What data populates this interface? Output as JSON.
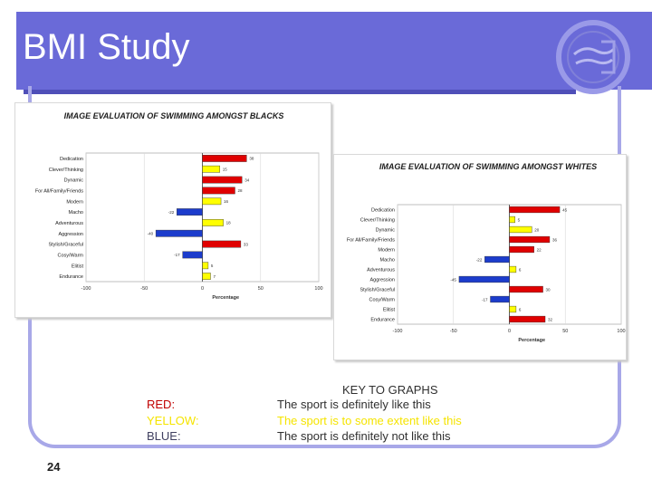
{
  "slide": {
    "title": "BMI Study",
    "page_number": "24"
  },
  "key": {
    "title": "KEY TO GRAPHS",
    "rows": [
      {
        "label": "RED:",
        "text": "The sport is definitely like this",
        "color": "#c00000"
      },
      {
        "label": "YELLOW:",
        "text": "The sport is to some extent like this",
        "color": "#f5e400"
      },
      {
        "label": "BLUE:",
        "text": "The sport is definitely not like this",
        "color": "#404060"
      }
    ]
  },
  "colors": {
    "red": "#e00000",
    "yellow": "#ffff00",
    "blue": "#1c3ccc"
  },
  "chart_data": [
    {
      "type": "bar",
      "orientation": "horizontal",
      "title": "IMAGE EVALUATION OF SWIMMING AMONGST BLACKS",
      "xlabel": "Percentage",
      "xlim": [
        -100,
        100
      ],
      "xticks": [
        "-100",
        "-50",
        "0",
        "50",
        "100"
      ],
      "categories": [
        "Dedication",
        "Clever/Thinking",
        "Dynamic",
        "For All/Family/Friends",
        "Modern",
        "Macho",
        "Adventurous",
        "Aggression",
        "Stylish/Graceful",
        "Cosy/Warm",
        "Elitist",
        "Endurance"
      ],
      "values": [
        38,
        15,
        34,
        28,
        16,
        -22,
        18,
        -40,
        33,
        -17,
        5,
        7
      ],
      "value_labels": [
        "38",
        "15",
        "34",
        "28",
        "16",
        "-22",
        "18",
        "-40",
        "33",
        "-17",
        "5",
        "7"
      ],
      "bar_colors": [
        "red",
        "yellow",
        "red",
        "red",
        "yellow",
        "blue",
        "yellow",
        "blue",
        "red",
        "blue",
        "yellow",
        "yellow"
      ]
    },
    {
      "type": "bar",
      "orientation": "horizontal",
      "title": "IMAGE EVALUATION OF SWIMMING AMONGST WHITES",
      "xlabel": "Percentage",
      "xlim": [
        -100,
        100
      ],
      "xticks": [
        "-100",
        "-50",
        "0",
        "50",
        "100"
      ],
      "categories": [
        "Dedication",
        "Clever/Thinking",
        "Dynamic",
        "For All/Family/Friends",
        "Modern",
        "Macho",
        "Adventurous",
        "Aggression",
        "Stylish/Graceful",
        "Cosy/Warm",
        "Elitist",
        "Endurance"
      ],
      "values": [
        45,
        5,
        20,
        36,
        22,
        -22,
        6,
        -45,
        30,
        -17,
        6,
        32
      ],
      "value_labels": [
        "45",
        "5",
        "20",
        "36",
        "22",
        "-22",
        "6",
        "-45",
        "30",
        "-17",
        "6",
        "32"
      ],
      "bar_colors": [
        "red",
        "yellow",
        "yellow",
        "red",
        "red",
        "blue",
        "yellow",
        "blue",
        "red",
        "blue",
        "yellow",
        "red"
      ]
    }
  ]
}
